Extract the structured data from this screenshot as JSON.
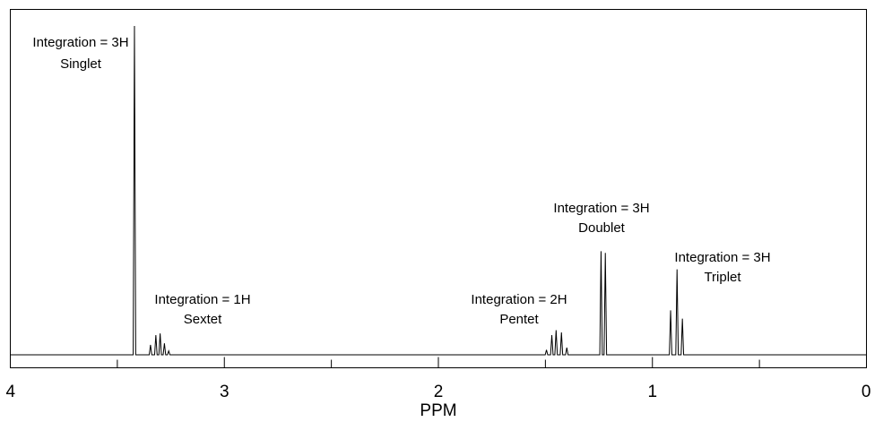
{
  "chart_data": {
    "type": "line",
    "title": "",
    "xlabel": "PPM",
    "ylabel": "",
    "xlim": [
      4,
      0
    ],
    "x_reversed": true,
    "grid": false,
    "x_ticks": [
      "4",
      "3",
      "2",
      "1",
      "0"
    ],
    "x_tick_values": [
      4,
      3,
      2,
      1,
      0
    ],
    "baseline": 0,
    "ylim": [
      0,
      1
    ],
    "peaks": [
      {
        "shift": 3.42,
        "height": 1.0
      },
      {
        "shift": 3.345,
        "height": 0.03
      },
      {
        "shift": 3.32,
        "height": 0.06
      },
      {
        "shift": 3.3,
        "height": 0.065
      },
      {
        "shift": 3.28,
        "height": 0.035
      },
      {
        "shift": 3.26,
        "height": 0.012
      },
      {
        "shift": 1.495,
        "height": 0.015
      },
      {
        "shift": 1.47,
        "height": 0.06
      },
      {
        "shift": 1.45,
        "height": 0.075
      },
      {
        "shift": 1.425,
        "height": 0.068
      },
      {
        "shift": 1.4,
        "height": 0.022
      },
      {
        "shift": 1.24,
        "height": 0.315
      },
      {
        "shift": 1.22,
        "height": 0.31
      },
      {
        "shift": 0.915,
        "height": 0.135
      },
      {
        "shift": 0.885,
        "height": 0.26
      },
      {
        "shift": 0.86,
        "height": 0.11
      }
    ],
    "annotations": [
      {
        "lines": [
          "Integration = 3H",
          "Singlet"
        ]
      },
      {
        "lines": [
          "Integration = 1H",
          "Sextet"
        ]
      },
      {
        "lines": [
          "Integration = 2H",
          "Pentet"
        ]
      },
      {
        "lines": [
          "Integration = 3H",
          "Doublet"
        ]
      },
      {
        "lines": [
          "Integration = 3H",
          "Triplet"
        ]
      }
    ]
  }
}
